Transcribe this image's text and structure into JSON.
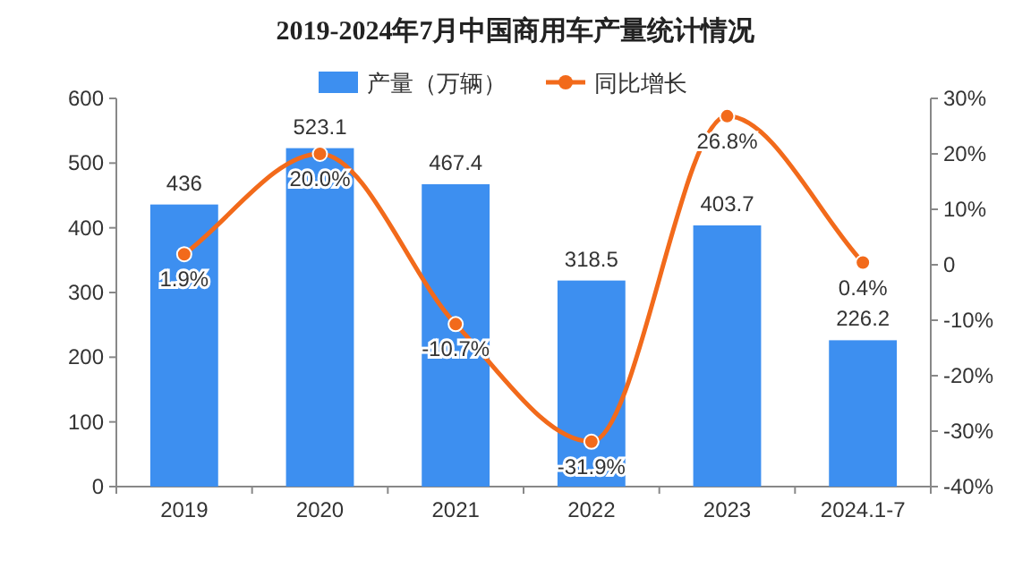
{
  "chart_data": {
    "type": "bar",
    "title": "2019-2024年7月中国商用车产量统计情况",
    "categories": [
      "2019",
      "2020",
      "2021",
      "2022",
      "2023",
      "2024.1-7"
    ],
    "series": [
      {
        "name": "产量（万辆）",
        "color": "#3d8ff0",
        "values": [
          436,
          523.1,
          467.4,
          318.5,
          403.7,
          226.2
        ],
        "value_labels": [
          "436",
          "523.1",
          "467.4",
          "318.5",
          "403.7",
          "226.2"
        ]
      },
      {
        "name": "同比增长",
        "type": "line",
        "axis": "y2",
        "color": "#f26a1b",
        "marker": "circle",
        "values": [
          1.9,
          20.0,
          -10.7,
          -31.9,
          26.8,
          0.4
        ],
        "value_labels": [
          "1.9%",
          "20.0%",
          "-10.7%",
          "-31.9%",
          "26.8%",
          "0.4%"
        ]
      }
    ],
    "ylim": [
      0,
      600
    ],
    "yticks": [
      0,
      100,
      200,
      300,
      400,
      500,
      600
    ],
    "y2lim": [
      -40,
      30
    ],
    "y2ticks": [
      {
        "value": -40,
        "label": "-40%"
      },
      {
        "value": -30,
        "label": "-30%"
      },
      {
        "value": -20,
        "label": "-20%"
      },
      {
        "value": -10,
        "label": "-10%"
      },
      {
        "value": 0,
        "label": "0"
      },
      {
        "value": 10,
        "label": "10%"
      },
      {
        "value": 20,
        "label": "20%"
      },
      {
        "value": 30,
        "label": "30%"
      }
    ],
    "legend": "top",
    "grid": false
  }
}
